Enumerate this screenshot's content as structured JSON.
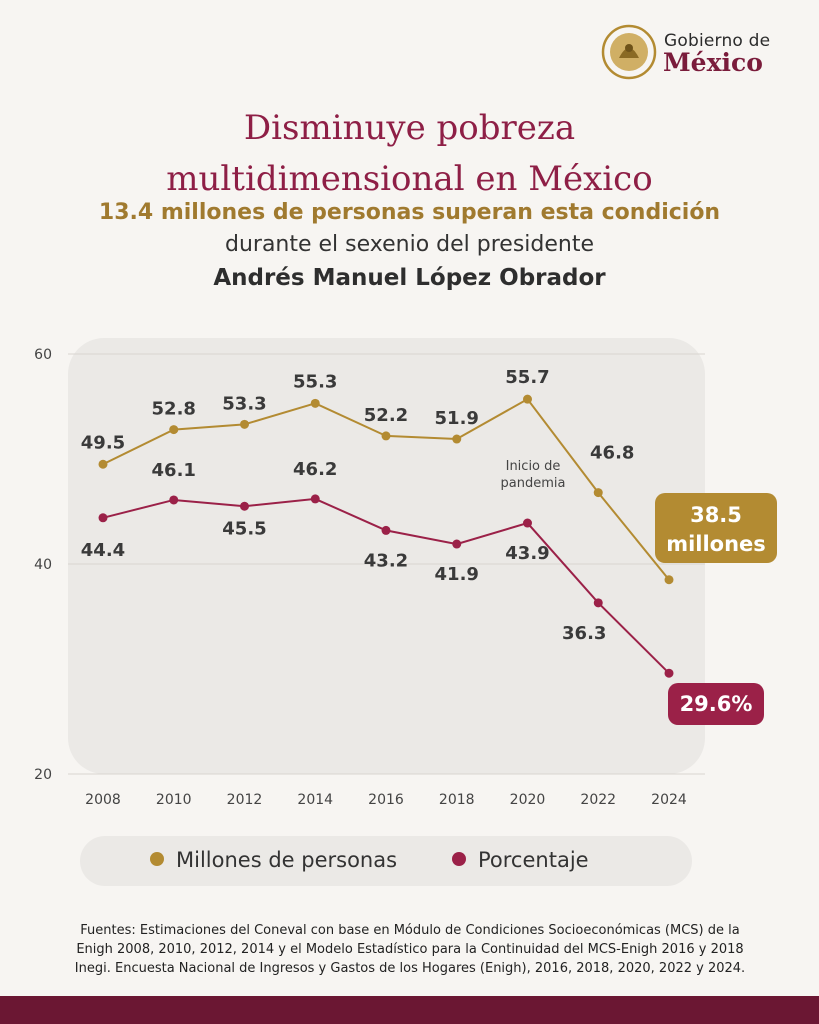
{
  "logo": {
    "line1": "Gobierno de",
    "line2": "México"
  },
  "heading": {
    "title_line1": "Disminuye pobreza",
    "title_line2": "multidimensional en México",
    "subtitle": "13.4 millones de personas superan esta condición",
    "line2": "durante el sexenio del presidente",
    "line3": "Andrés Manuel López Obrador"
  },
  "colors": {
    "gold": "#b38b32",
    "maroon": "#9b2148",
    "title": "#8e1f46",
    "footer": "#6b1733"
  },
  "chart_data": {
    "type": "line",
    "x": [
      "2008",
      "2010",
      "2012",
      "2014",
      "2016",
      "2018",
      "2020",
      "2022",
      "2024"
    ],
    "ylim": [
      20,
      60
    ],
    "yticks": [
      "20",
      "40",
      "60"
    ],
    "grid": true,
    "series": [
      {
        "name": "Millones de personas",
        "values": [
          49.5,
          52.8,
          53.3,
          55.3,
          52.2,
          51.9,
          55.7,
          46.8,
          38.5
        ],
        "labels": [
          "49.5",
          "52.8",
          "53.3",
          "55.3",
          "52.2",
          "51.9",
          "55.7",
          "46.8",
          ""
        ],
        "color": "#b38b32"
      },
      {
        "name": "Porcentaje",
        "values": [
          44.4,
          46.1,
          45.5,
          46.2,
          43.2,
          41.9,
          43.9,
          36.3,
          29.6
        ],
        "labels": [
          "44.4",
          "46.1",
          "45.5",
          "46.2",
          "43.2",
          "41.9",
          "43.9",
          "36.3",
          ""
        ],
        "color": "#9b2148"
      }
    ],
    "annotations": {
      "pandemic_line1": "Inicio de",
      "pandemic_line2": "pandemia",
      "last_millions_line1": "38.5",
      "last_millions_line2": "millones",
      "last_percent": "29.6%"
    }
  },
  "legend": {
    "millions": "Millones de personas",
    "percent": "Porcentaje"
  },
  "sources": {
    "line1": "Fuentes: Estimaciones del Coneval con base en Módulo de Condiciones Socioeconómicas (MCS) de la",
    "line2": "Enigh 2008, 2010, 2012, 2014 y el Modelo Estadístico para la Continuidad del MCS-Enigh 2016 y 2018",
    "line3": "Inegi. Encuesta Nacional de Ingresos y Gastos de los Hogares (Enigh), 2016, 2018, 2020, 2022 y 2024."
  }
}
